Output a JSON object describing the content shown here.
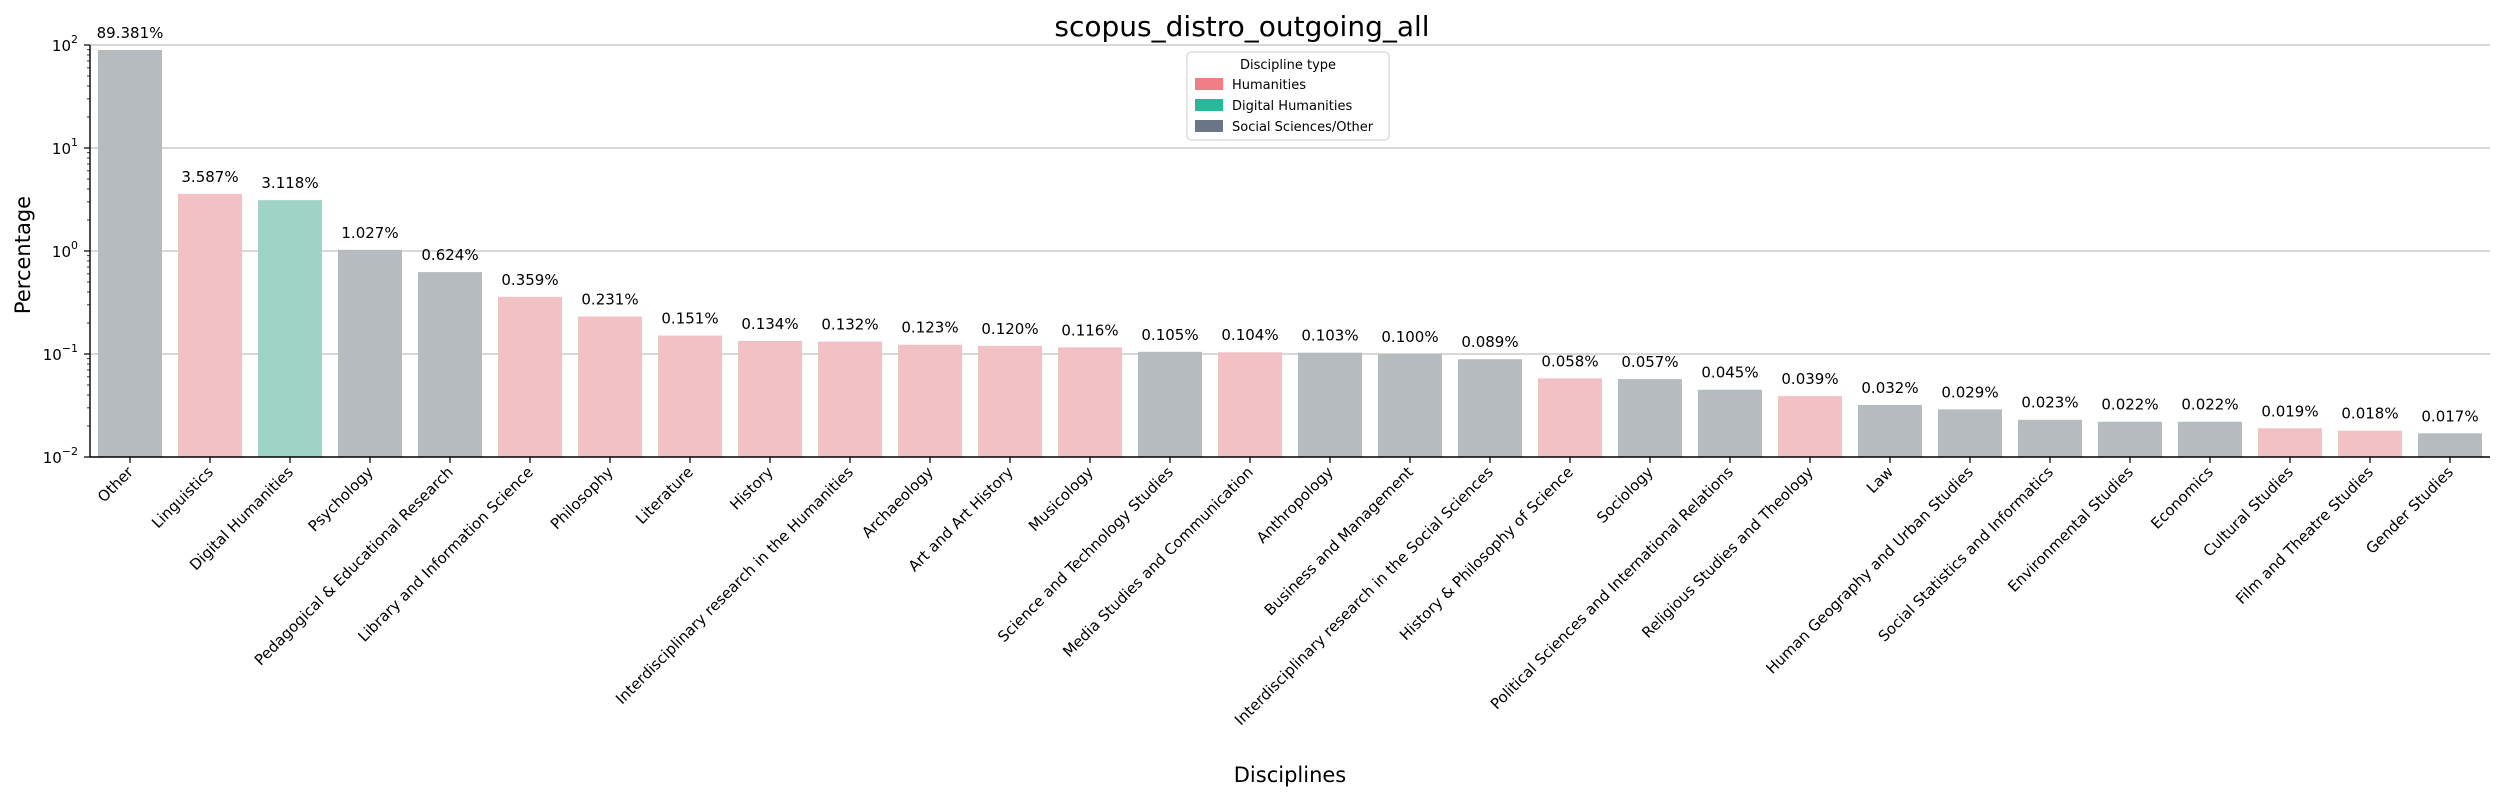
{
  "chart_data": {
    "type": "bar",
    "title": "scopus_distro_outgoing_all",
    "xlabel": "Disciplines",
    "ylabel": "Percentage",
    "yscale": "log",
    "ylim": [
      0.01,
      100
    ],
    "y_ticks": [
      {
        "value": 100,
        "base": "10",
        "exp": "2"
      },
      {
        "value": 10,
        "base": "10",
        "exp": "1"
      },
      {
        "value": 1,
        "base": "10",
        "exp": "0"
      },
      {
        "value": 0.1,
        "base": "10",
        "exp": "−1"
      },
      {
        "value": 0.01,
        "base": "10",
        "exp": "−2"
      }
    ],
    "grid": "horizontal at major ticks",
    "legend": {
      "title": "Discipline type",
      "placement": "top-center",
      "items": [
        {
          "label": "Humanities",
          "color": "#f07e87"
        },
        {
          "label": "Digital Humanities",
          "color": "#26b99a"
        },
        {
          "label": "Social Sciences/Other",
          "color": "#6a7585"
        }
      ]
    },
    "bar_colors": {
      "Humanities": "#f2c1c6",
      "Digital Humanities": "#9fd3c6",
      "Social Sciences/Other": "#b6bbbf"
    },
    "bars": [
      {
        "category": "Other",
        "value": 89.381,
        "label": "89.381%",
        "group": "Social Sciences/Other"
      },
      {
        "category": "Linguistics",
        "value": 3.587,
        "label": "3.587%",
        "group": "Humanities"
      },
      {
        "category": "Digital Humanities",
        "value": 3.118,
        "label": "3.118%",
        "group": "Digital Humanities"
      },
      {
        "category": "Psychology",
        "value": 1.027,
        "label": "1.027%",
        "group": "Social Sciences/Other"
      },
      {
        "category": "Pedagogical & Educational Research",
        "value": 0.624,
        "label": "0.624%",
        "group": "Social Sciences/Other"
      },
      {
        "category": "Library and Information Science",
        "value": 0.359,
        "label": "0.359%",
        "group": "Humanities"
      },
      {
        "category": "Philosophy",
        "value": 0.231,
        "label": "0.231%",
        "group": "Humanities"
      },
      {
        "category": "Literature",
        "value": 0.151,
        "label": "0.151%",
        "group": "Humanities"
      },
      {
        "category": "History",
        "value": 0.134,
        "label": "0.134%",
        "group": "Humanities"
      },
      {
        "category": "Interdisciplinary research in the Humanities",
        "value": 0.132,
        "label": "0.132%",
        "group": "Humanities"
      },
      {
        "category": "Archaeology",
        "value": 0.123,
        "label": "0.123%",
        "group": "Humanities"
      },
      {
        "category": "Art and Art History",
        "value": 0.12,
        "label": "0.120%",
        "group": "Humanities"
      },
      {
        "category": "Musicology",
        "value": 0.116,
        "label": "0.116%",
        "group": "Humanities"
      },
      {
        "category": "Science and Technology Studies",
        "value": 0.105,
        "label": "0.105%",
        "group": "Social Sciences/Other"
      },
      {
        "category": "Media Studies and Communication",
        "value": 0.104,
        "label": "0.104%",
        "group": "Humanities"
      },
      {
        "category": "Anthropology",
        "value": 0.103,
        "label": "0.103%",
        "group": "Social Sciences/Other"
      },
      {
        "category": "Business and Management",
        "value": 0.1,
        "label": "0.100%",
        "group": "Social Sciences/Other"
      },
      {
        "category": "Interdisciplinary research in the Social Sciences",
        "value": 0.089,
        "label": "0.089%",
        "group": "Social Sciences/Other"
      },
      {
        "category": "History & Philosophy of Science",
        "value": 0.058,
        "label": "0.058%",
        "group": "Humanities"
      },
      {
        "category": "Sociology",
        "value": 0.057,
        "label": "0.057%",
        "group": "Social Sciences/Other"
      },
      {
        "category": "Political Sciences and International Relations",
        "value": 0.045,
        "label": "0.045%",
        "group": "Social Sciences/Other"
      },
      {
        "category": "Religious Studies and Theology",
        "value": 0.039,
        "label": "0.039%",
        "group": "Humanities"
      },
      {
        "category": "Law",
        "value": 0.032,
        "label": "0.032%",
        "group": "Social Sciences/Other"
      },
      {
        "category": "Human Geography and Urban Studies",
        "value": 0.029,
        "label": "0.029%",
        "group": "Social Sciences/Other"
      },
      {
        "category": "Social Statistics and Informatics",
        "value": 0.023,
        "label": "0.023%",
        "group": "Social Sciences/Other"
      },
      {
        "category": "Environmental Studies",
        "value": 0.022,
        "label": "0.022%",
        "group": "Social Sciences/Other"
      },
      {
        "category": "Economics",
        "value": 0.022,
        "label": "0.022%",
        "group": "Social Sciences/Other"
      },
      {
        "category": "Cultural Studies",
        "value": 0.019,
        "label": "0.019%",
        "group": "Humanities"
      },
      {
        "category": "Film and Theatre Studies",
        "value": 0.018,
        "label": "0.018%",
        "group": "Humanities"
      },
      {
        "category": "Gender Studies",
        "value": 0.017,
        "label": "0.017%",
        "group": "Social Sciences/Other"
      }
    ]
  }
}
